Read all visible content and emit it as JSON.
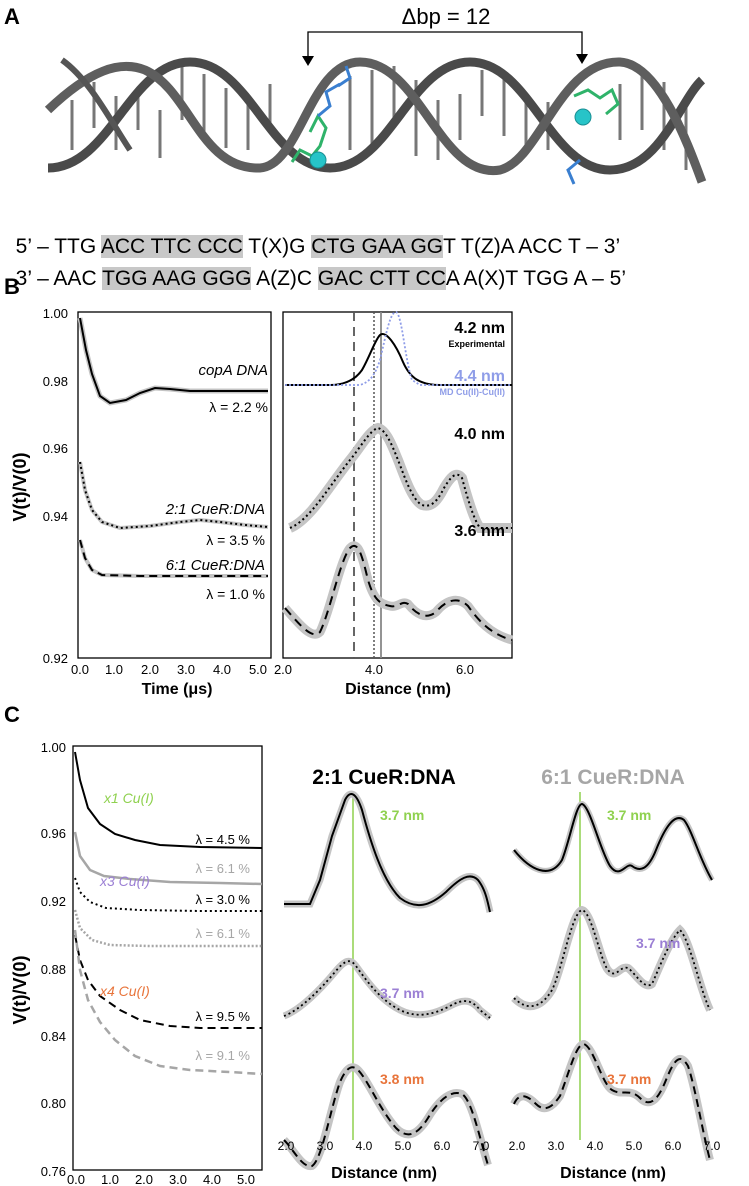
{
  "panelA": {
    "label": "A",
    "dbp_label": "Δbp = 12",
    "seq_top": [
      "5’ – TTG ",
      "ACC TTC CCC",
      " T(X)G ",
      "CTG GAA GG",
      "T T(Z)A ACC T – 3’"
    ],
    "seq_bottom": [
      "3’ – AAC ",
      "TGG AAG GGG",
      " A(Z)C ",
      "GAC CTT CC",
      "A A(X)T TGG A – 5’"
    ]
  },
  "panelB": {
    "label": "B",
    "ylabel": "V(t)/V(0)",
    "time_xlabel": "Time (μs)",
    "dist_xlabel": "Distance (nm)",
    "y_ticks": [
      "1.00",
      "0.98",
      "0.96",
      "0.94",
      "0.92"
    ],
    "time_ticks": [
      "0.0",
      "1.0",
      "2.0",
      "3.0",
      "4.0",
      "5.0"
    ],
    "dist_ticks": [
      "2.0",
      "4.0",
      "6.0"
    ],
    "traces": [
      {
        "name": "copA DNA",
        "lambda": "λ = 2.2 %"
      },
      {
        "name": "2:1 CueR:DNA",
        "lambda": "λ = 3.5 %"
      },
      {
        "name": "6:1 CueR:DNA",
        "lambda": "λ = 1.0 %"
      }
    ],
    "dist_labels": [
      {
        "value": "4.2 nm",
        "sub": "Experimental"
      },
      {
        "value": "4.4 nm",
        "sub": "MD Cu(II)-Cu(II)"
      },
      {
        "value": "4.0 nm"
      },
      {
        "value": "3.6 nm"
      }
    ]
  },
  "panelC": {
    "label": "C",
    "ylabel": "V(t)/V(0)",
    "time_xlabel": "Time (μs)",
    "dist_xlabel": "Distance (nm)",
    "y_ticks": [
      "1.00",
      "0.96",
      "0.92",
      "0.88",
      "0.84",
      "0.80",
      "0.76"
    ],
    "time_ticks": [
      "0.0",
      "1.0",
      "2.0",
      "3.0",
      "4.0",
      "5.0"
    ],
    "dist_ticks": [
      "2.0",
      "3.0",
      "4.0",
      "5.0",
      "6.0",
      "7.0"
    ],
    "cu_labels": [
      "x1 Cu(I)",
      "x3 Cu(I)",
      "x4 Cu(I)"
    ],
    "lambdas": [
      "λ = 4.5 %",
      "λ = 6.1 %",
      "λ = 3.0 %",
      "λ = 6.1 %",
      "λ = 9.5 %",
      "λ = 9.1 %"
    ],
    "title_21": "2:1 CueR:DNA",
    "title_61": "6:1 CueR:DNA",
    "peaks_21": [
      "3.7 nm",
      "3.7 nm",
      "3.8 nm"
    ],
    "peaks_61": [
      "3.7 nm",
      "3.7 nm",
      "3.7 nm"
    ]
  },
  "colors": {
    "green": "#8fd14f",
    "purple": "#9b7fd4",
    "orange": "#e8743b",
    "gray": "#a6a6a6",
    "blue_dotted": "#8f9de8",
    "highlight": "#c8c8c8"
  }
}
